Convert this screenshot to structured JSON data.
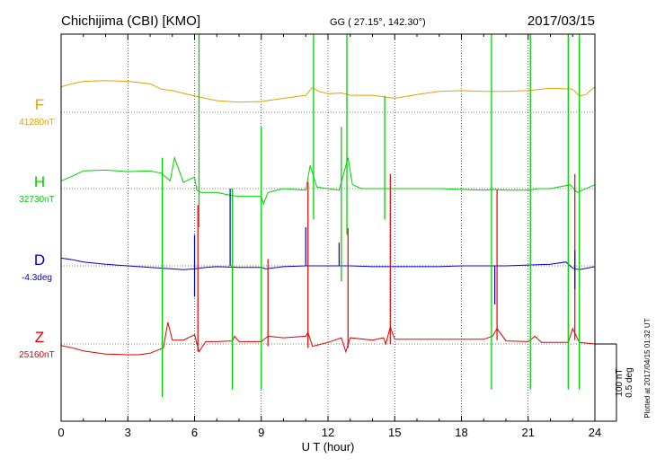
{
  "header": {
    "station": "Chichijima (CBI)  [KMO]",
    "coords": "GG ( 27.15°, 142.30°)",
    "date": "2017/03/15",
    "plotted": "Plotted at 2017/04/15 01:32 UT"
  },
  "scale": {
    "nt": "100 nT",
    "deg": "0.5 deg"
  },
  "colors": {
    "F": "#e8a000",
    "H": "#00d200",
    "D": "#0000d0",
    "Z": "#e00000",
    "axis": "#000000"
  },
  "chart_data": {
    "type": "line",
    "xlabel": "U T (hour)",
    "xlim": [
      0,
      24
    ],
    "xticks": [
      0,
      3,
      6,
      9,
      12,
      15,
      18,
      21,
      24
    ],
    "series": [
      {
        "key": "F",
        "name": "F",
        "baseline": "41280nT",
        "points": [
          [
            0,
            33
          ],
          [
            0.5,
            37
          ],
          [
            1,
            40
          ],
          [
            2,
            41
          ],
          [
            3,
            40
          ],
          [
            4,
            37
          ],
          [
            4.5,
            30
          ],
          [
            5,
            28
          ],
          [
            6,
            21
          ],
          [
            6.5,
            18
          ],
          [
            7,
            15
          ],
          [
            8,
            13
          ],
          [
            9,
            14
          ],
          [
            10,
            18
          ],
          [
            11,
            22
          ],
          [
            11.3,
            32
          ],
          [
            11.6,
            27
          ],
          [
            12,
            24
          ],
          [
            12.6,
            25
          ],
          [
            13,
            22
          ],
          [
            14,
            22
          ],
          [
            14.5,
            20
          ],
          [
            15,
            18
          ],
          [
            16,
            23
          ],
          [
            17,
            27
          ],
          [
            18,
            28
          ],
          [
            19,
            27
          ],
          [
            20,
            27
          ],
          [
            21,
            28
          ],
          [
            22,
            31
          ],
          [
            23,
            30
          ],
          [
            23.3,
            21
          ],
          [
            23.6,
            23
          ],
          [
            24,
            33
          ]
        ]
      },
      {
        "key": "H",
        "name": "H",
        "baseline": "32730nT",
        "points": [
          [
            0,
            10
          ],
          [
            0.5,
            16
          ],
          [
            1,
            23
          ],
          [
            2,
            24
          ],
          [
            3,
            22
          ],
          [
            4,
            23
          ],
          [
            4.5,
            20
          ],
          [
            4.9,
            10
          ],
          [
            5.1,
            40
          ],
          [
            5.5,
            8
          ],
          [
            6,
            15
          ],
          [
            6.1,
            -2
          ],
          [
            6.3,
            -5
          ],
          [
            7,
            -5
          ],
          [
            7.5,
            -8
          ],
          [
            8,
            -10
          ],
          [
            9,
            -10
          ],
          [
            9.1,
            -20
          ],
          [
            9.3,
            -5
          ],
          [
            10,
            0
          ],
          [
            11,
            -2
          ],
          [
            11.2,
            30
          ],
          [
            11.5,
            2
          ],
          [
            12,
            0
          ],
          [
            12.5,
            -2
          ],
          [
            12.9,
            40
          ],
          [
            13.1,
            5
          ],
          [
            13.5,
            0
          ],
          [
            14,
            0
          ],
          [
            14.5,
            0
          ],
          [
            15,
            0
          ],
          [
            17,
            0
          ],
          [
            19,
            -2
          ],
          [
            19.5,
            -1
          ],
          [
            20,
            -2
          ],
          [
            21,
            -2
          ],
          [
            21.5,
            0
          ],
          [
            22,
            0
          ],
          [
            22.9,
            5
          ],
          [
            23.2,
            -5
          ],
          [
            24,
            5
          ]
        ]
      },
      {
        "key": "D",
        "name": "D",
        "baseline": "-4.3deg",
        "points": [
          [
            0,
            10
          ],
          [
            0.5,
            8
          ],
          [
            1,
            5
          ],
          [
            2,
            2
          ],
          [
            3,
            0
          ],
          [
            4,
            -2
          ],
          [
            5,
            -4
          ],
          [
            5.5,
            -5
          ],
          [
            6,
            -4
          ],
          [
            6.5,
            -2
          ],
          [
            7,
            -1
          ],
          [
            8,
            -2
          ],
          [
            9,
            -2
          ],
          [
            9.2,
            -4
          ],
          [
            10,
            -1
          ],
          [
            11,
            0
          ],
          [
            12,
            0
          ],
          [
            13,
            0
          ],
          [
            14,
            -1
          ],
          [
            15,
            -1
          ],
          [
            16,
            -1
          ],
          [
            17,
            -1
          ],
          [
            18,
            0
          ],
          [
            19,
            0
          ],
          [
            20,
            0
          ],
          [
            21,
            1
          ],
          [
            22,
            2
          ],
          [
            22.7,
            5
          ],
          [
            23,
            -3
          ],
          [
            23.3,
            -5
          ],
          [
            24,
            -1
          ]
        ]
      },
      {
        "key": "Z",
        "name": "Z",
        "baseline": "25160nT",
        "points": [
          [
            0,
            -2
          ],
          [
            0.5,
            -5
          ],
          [
            1,
            -9
          ],
          [
            2,
            -13
          ],
          [
            3,
            -14
          ],
          [
            3.5,
            -14
          ],
          [
            4,
            -12
          ],
          [
            4.6,
            -5
          ],
          [
            4.8,
            28
          ],
          [
            5,
            5
          ],
          [
            5.5,
            5
          ],
          [
            6,
            12
          ],
          [
            6.2,
            -10
          ],
          [
            6.5,
            3
          ],
          [
            7,
            3
          ],
          [
            7.7,
            4
          ],
          [
            7.8,
            10
          ],
          [
            8,
            3
          ],
          [
            9,
            3
          ],
          [
            9.3,
            10
          ],
          [
            10,
            8
          ],
          [
            11,
            10
          ],
          [
            11.1,
            15
          ],
          [
            11.3,
            -3
          ],
          [
            12,
            2
          ],
          [
            12.6,
            8
          ],
          [
            12.8,
            -10
          ],
          [
            13,
            8
          ],
          [
            14,
            5
          ],
          [
            14.5,
            8
          ],
          [
            14.6,
            0
          ],
          [
            14.8,
            22
          ],
          [
            15,
            6
          ],
          [
            16,
            6
          ],
          [
            17,
            6
          ],
          [
            18,
            6
          ],
          [
            19,
            6
          ],
          [
            19.4,
            10
          ],
          [
            19.6,
            20
          ],
          [
            20,
            4
          ],
          [
            21,
            3
          ],
          [
            21.3,
            10
          ],
          [
            21.6,
            2
          ],
          [
            22,
            2
          ],
          [
            22.8,
            2
          ],
          [
            23,
            20
          ],
          [
            23.3,
            2
          ],
          [
            24,
            0
          ]
        ]
      }
    ],
    "spikes": [
      {
        "key": "H",
        "x": 4.55,
        "from": -270,
        "to": 40
      },
      {
        "key": "H",
        "x": 6.2,
        "from": -50,
        "to": 220
      },
      {
        "key": "H",
        "x": 7.7,
        "from": -260,
        "to": 0
      },
      {
        "key": "H",
        "x": 9.0,
        "from": -260,
        "to": 80
      },
      {
        "key": "H",
        "x": 11.35,
        "from": -40,
        "to": 200
      },
      {
        "key": "H",
        "x": 12.6,
        "from": -120,
        "to": 80
      },
      {
        "key": "H",
        "x": 12.85,
        "from": -60,
        "to": 200
      },
      {
        "key": "H",
        "x": 14.55,
        "from": -40,
        "to": 120
      },
      {
        "key": "H",
        "x": 19.35,
        "from": -260,
        "to": 200
      },
      {
        "key": "H",
        "x": 21.1,
        "from": -260,
        "to": 200
      },
      {
        "key": "H",
        "x": 22.8,
        "from": -260,
        "to": 200
      },
      {
        "key": "H",
        "x": 23.3,
        "from": -260,
        "to": 200
      },
      {
        "key": "Z",
        "x": 6.15,
        "from": -10,
        "to": 180
      },
      {
        "key": "Z",
        "x": 9.3,
        "from": -3,
        "to": 110
      },
      {
        "key": "Z",
        "x": 11.1,
        "from": -5,
        "to": 210
      },
      {
        "key": "Z",
        "x": 12.9,
        "from": -5,
        "to": 150
      },
      {
        "key": "Z",
        "x": 14.8,
        "from": 0,
        "to": 220
      },
      {
        "key": "Z",
        "x": 19.6,
        "from": 5,
        "to": 200
      },
      {
        "key": "Z",
        "x": 23.1,
        "from": 5,
        "to": 220
      },
      {
        "key": "D",
        "x": 6.0,
        "from": -40,
        "to": 40
      },
      {
        "key": "D",
        "x": 7.6,
        "from": 0,
        "to": 100
      },
      {
        "key": "D",
        "x": 11.0,
        "from": 0,
        "to": 50
      },
      {
        "key": "D",
        "x": 12.5,
        "from": 0,
        "to": 30
      },
      {
        "key": "D",
        "x": 19.5,
        "from": -50,
        "to": 0
      },
      {
        "key": "D",
        "x": 23.1,
        "from": -30,
        "to": 20
      }
    ]
  }
}
